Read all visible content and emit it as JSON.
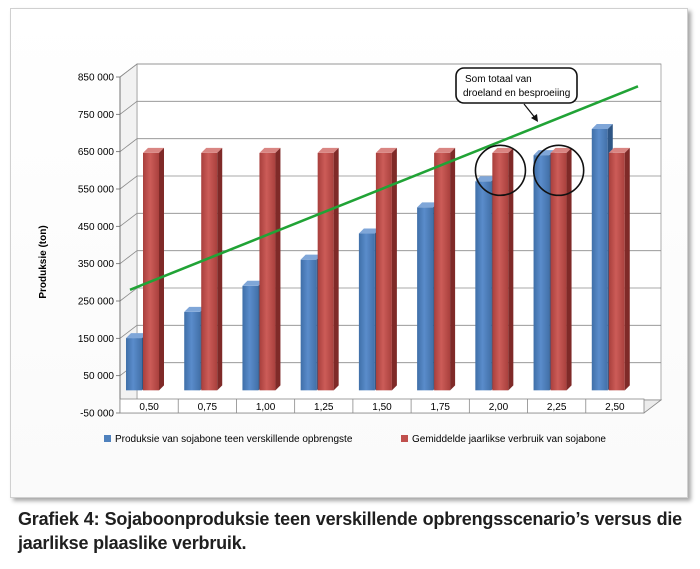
{
  "chart_data": {
    "type": "bar",
    "ylabel": "Produksie (ton)",
    "ylim": [
      -50000,
      850000
    ],
    "ytick_labels": [
      "-50 000",
      "50 000",
      "150 000",
      "250 000",
      "350 000",
      "450 000",
      "550 000",
      "650 000",
      "750 000",
      "850 000"
    ],
    "yticks": [
      -50000,
      50000,
      150000,
      250000,
      350000,
      450000,
      550000,
      650000,
      750000,
      850000
    ],
    "categories": [
      "0,50",
      "0,75",
      "1,00",
      "1,25",
      "1,50",
      "1,75",
      "2,00",
      "2,25",
      "2,50"
    ],
    "grid": true,
    "legend_position": "bottom",
    "series": [
      {
        "name": "Produksie van sojabone teen verskillende opbrengste",
        "color": "#4F81BD",
        "values": [
          140000,
          210000,
          280000,
          350000,
          420000,
          490000,
          560000,
          630000,
          700000
        ]
      },
      {
        "name": "Gemiddelde jaarlikse verbruik van sojabone",
        "color": "#C0504D",
        "values": [
          636000,
          636000,
          636000,
          636000,
          636000,
          636000,
          636000,
          636000,
          636000
        ]
      }
    ],
    "trend_line": {
      "color": "#21A336",
      "start": {
        "category": "0,50",
        "value": 280000
      },
      "end": {
        "category": "2,50",
        "value": 825000
      }
    },
    "annotation": {
      "line1": "Som totaal van",
      "line2": "droeland en besproeiing"
    },
    "highlight_circles": [
      "2,00",
      "2,25"
    ]
  },
  "caption": "Grafiek 4: Sojaboonproduksie teen verskillende opbrengsscenario’s versus die jaarlikse plaaslike verbruik."
}
